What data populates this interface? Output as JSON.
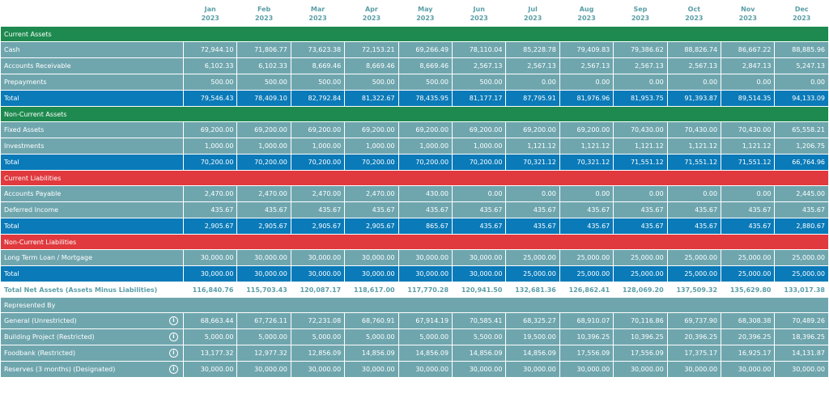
{
  "months": [
    {
      "m": "Jan",
      "y": "2023"
    },
    {
      "m": "Feb",
      "y": "2023"
    },
    {
      "m": "Mar",
      "y": "2023"
    },
    {
      "m": "Apr",
      "y": "2023"
    },
    {
      "m": "May",
      "y": "2023"
    },
    {
      "m": "Jun",
      "y": "2023"
    },
    {
      "m": "Jul",
      "y": "2023"
    },
    {
      "m": "Aug",
      "y": "2023"
    },
    {
      "m": "Sep",
      "y": "2023"
    },
    {
      "m": "Oct",
      "y": "2023"
    },
    {
      "m": "Nov",
      "y": "2023"
    },
    {
      "m": "Dec",
      "y": "2023"
    }
  ],
  "blocks": [
    {
      "section": "Current Assets",
      "color": "green",
      "rows": [
        {
          "label": "Cash",
          "values": [
            "72,944.10",
            "71,806.77",
            "73,623.38",
            "72,153.21",
            "69,266.49",
            "78,110.04",
            "85,228.78",
            "79,409.83",
            "79,386.62",
            "88,826.74",
            "86,667.22",
            "88,885.96"
          ]
        },
        {
          "label": "Accounts Receivable",
          "values": [
            "6,102.33",
            "6,102.33",
            "8,669.46",
            "8,669.46",
            "8,669.46",
            "2,567.13",
            "2,567.13",
            "2,567.13",
            "2,567.13",
            "2,567.13",
            "2,847.13",
            "5,247.13"
          ]
        },
        {
          "label": "Prepayments",
          "values": [
            "500.00",
            "500.00",
            "500.00",
            "500.00",
            "500.00",
            "500.00",
            "0.00",
            "0.00",
            "0.00",
            "0.00",
            "0.00",
            "0.00"
          ]
        }
      ],
      "total": {
        "label": "Total",
        "values": [
          "79,546.43",
          "78,409.10",
          "82,792.84",
          "81,322.67",
          "78,435.95",
          "81,177.17",
          "87,795.91",
          "81,976.96",
          "81,953.75",
          "91,393.87",
          "89,514.35",
          "94,133.09"
        ]
      }
    },
    {
      "section": "Non-Current Assets",
      "color": "green",
      "rows": [
        {
          "label": "Fixed Assets",
          "values": [
            "69,200.00",
            "69,200.00",
            "69,200.00",
            "69,200.00",
            "69,200.00",
            "69,200.00",
            "69,200.00",
            "69,200.00",
            "70,430.00",
            "70,430.00",
            "70,430.00",
            "65,558.21"
          ]
        },
        {
          "label": "Investments",
          "values": [
            "1,000.00",
            "1,000.00",
            "1,000.00",
            "1,000.00",
            "1,000.00",
            "1,000.00",
            "1,121.12",
            "1,121.12",
            "1,121.12",
            "1,121.12",
            "1,121.12",
            "1,206.75"
          ]
        }
      ],
      "total": {
        "label": "Total",
        "values": [
          "70,200.00",
          "70,200.00",
          "70,200.00",
          "70,200.00",
          "70,200.00",
          "70,200.00",
          "70,321.12",
          "70,321.12",
          "71,551.12",
          "71,551.12",
          "71,551.12",
          "66,764.96"
        ]
      }
    },
    {
      "section": "Current Liabilities",
      "color": "red",
      "rows": [
        {
          "label": "Accounts Payable",
          "values": [
            "2,470.00",
            "2,470.00",
            "2,470.00",
            "2,470.00",
            "430.00",
            "0.00",
            "0.00",
            "0.00",
            "0.00",
            "0.00",
            "0.00",
            "2,445.00"
          ]
        },
        {
          "label": "Deferred Income",
          "values": [
            "435.67",
            "435.67",
            "435.67",
            "435.67",
            "435.67",
            "435.67",
            "435.67",
            "435.67",
            "435.67",
            "435.67",
            "435.67",
            "435.67"
          ]
        }
      ],
      "total": {
        "label": "Total",
        "values": [
          "2,905.67",
          "2,905.67",
          "2,905.67",
          "2,905.67",
          "865.67",
          "435.67",
          "435.67",
          "435.67",
          "435.67",
          "435.67",
          "435.67",
          "2,880.67"
        ]
      }
    },
    {
      "section": "Non-Current Liabilities",
      "color": "red",
      "rows": [
        {
          "label": "Long Term Loan / Mortgage",
          "values": [
            "30,000.00",
            "30,000.00",
            "30,000.00",
            "30,000.00",
            "30,000.00",
            "30,000.00",
            "25,000.00",
            "25,000.00",
            "25,000.00",
            "25,000.00",
            "25,000.00",
            "25,000.00"
          ]
        }
      ],
      "total": {
        "label": "Total",
        "values": [
          "30,000.00",
          "30,000.00",
          "30,000.00",
          "30,000.00",
          "30,000.00",
          "30,000.00",
          "25,000.00",
          "25,000.00",
          "25,000.00",
          "25,000.00",
          "25,000.00",
          "25,000.00"
        ]
      }
    }
  ],
  "net": {
    "label": "Total Net Assets (Assets Minus Liabilities)",
    "values": [
      "116,840.76",
      "115,703.43",
      "120,087.17",
      "118,617.00",
      "117,770.28",
      "120,941.50",
      "132,681.36",
      "126,862.41",
      "128,069.20",
      "137,509.32",
      "135,629.80",
      "133,017.38"
    ]
  },
  "represented": {
    "section": "Represented By",
    "rows": [
      {
        "label": "General (Unrestricted)",
        "values": [
          "68,663.44",
          "67,726.11",
          "72,231.08",
          "68,760.91",
          "67,914.19",
          "70,585.41",
          "68,325.27",
          "68,910.07",
          "70,116.86",
          "69,737.90",
          "68,308.38",
          "70,489.26"
        ]
      },
      {
        "label": "Building Project (Restricted)",
        "values": [
          "5,000.00",
          "5,000.00",
          "5,000.00",
          "5,000.00",
          "5,000.00",
          "5,500.00",
          "19,500.00",
          "10,396.25",
          "10,396.25",
          "20,396.25",
          "20,396.25",
          "18,396.25"
        ]
      },
      {
        "label": "Foodbank (Restricted)",
        "values": [
          "13,177.32",
          "12,977.32",
          "12,856.09",
          "14,856.09",
          "14,856.09",
          "14,856.09",
          "14,856.09",
          "17,556.09",
          "17,556.09",
          "17,375.17",
          "16,925.17",
          "14,131.87"
        ]
      },
      {
        "label": "Reserves (3 months) (Designated)",
        "values": [
          "30,000.00",
          "30,000.00",
          "30,000.00",
          "30,000.00",
          "30,000.00",
          "30,000.00",
          "30,000.00",
          "30,000.00",
          "30,000.00",
          "30,000.00",
          "30,000.00",
          "30,000.00"
        ]
      }
    ]
  },
  "info_icon_glyph": "i",
  "colors": {
    "green": "#1e8a4f",
    "red": "#e0393e",
    "teal": "#6fa6ae",
    "blue": "#0a7ab8",
    "header_text": "#5a9ea6"
  }
}
